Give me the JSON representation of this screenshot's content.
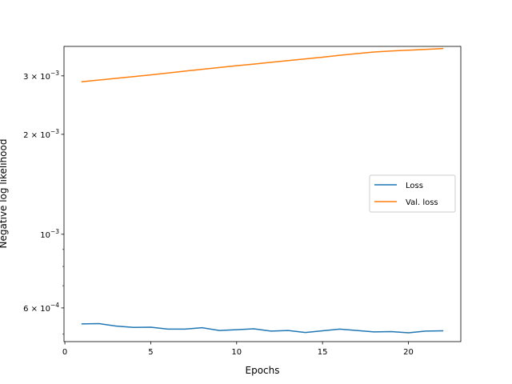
{
  "chart_data": {
    "type": "line",
    "xlabel": "Epochs",
    "ylabel": "Negative log likelihood",
    "xlim": [
      -0.05,
      23.05
    ],
    "ylim": [
      0.000475,
      0.00368
    ],
    "yscale": "log",
    "xticks": [
      0,
      5,
      10,
      15,
      20
    ],
    "xtick_labels": [
      "0",
      "5",
      "10",
      "15",
      "20"
    ],
    "yticks": [
      {
        "value": 0.0006,
        "mant": "6",
        "times": "×",
        "base": "10",
        "exp": "−4"
      },
      {
        "value": 0.001,
        "mant": "",
        "times": "",
        "base": "10",
        "exp": "−3"
      },
      {
        "value": 0.002,
        "mant": "2",
        "times": "×",
        "base": "10",
        "exp": "−3"
      },
      {
        "value": 0.003,
        "mant": "3",
        "times": "×",
        "base": "10",
        "exp": "−3"
      }
    ],
    "minor_yticks": [
      0.0005,
      0.0007,
      0.0008,
      0.0009
    ],
    "x": [
      1,
      2,
      3,
      4,
      5,
      6,
      7,
      8,
      9,
      10,
      11,
      12,
      13,
      14,
      15,
      16,
      17,
      18,
      19,
      20,
      21,
      22
    ],
    "series": [
      {
        "name": "Loss",
        "color": "#1f77b4",
        "values": [
          0.000537,
          0.000538,
          0.000529,
          0.000524,
          0.000525,
          0.000518,
          0.000518,
          0.000523,
          0.000513,
          0.000516,
          0.000519,
          0.000511,
          0.000513,
          0.000506,
          0.000512,
          0.000518,
          0.000513,
          0.000508,
          0.000509,
          0.000505,
          0.000511,
          0.000512
        ]
      },
      {
        "name": "Val. loss",
        "color": "#ff7f0e",
        "values": [
          0.00288,
          0.002915,
          0.00295,
          0.002985,
          0.00302,
          0.00306,
          0.0031,
          0.00314,
          0.00318,
          0.00322,
          0.003255,
          0.003295,
          0.003335,
          0.003375,
          0.003415,
          0.00346,
          0.0035,
          0.00354,
          0.003565,
          0.003585,
          0.003605,
          0.003625
        ]
      }
    ],
    "legend_position": "center-right",
    "grid": false
  }
}
